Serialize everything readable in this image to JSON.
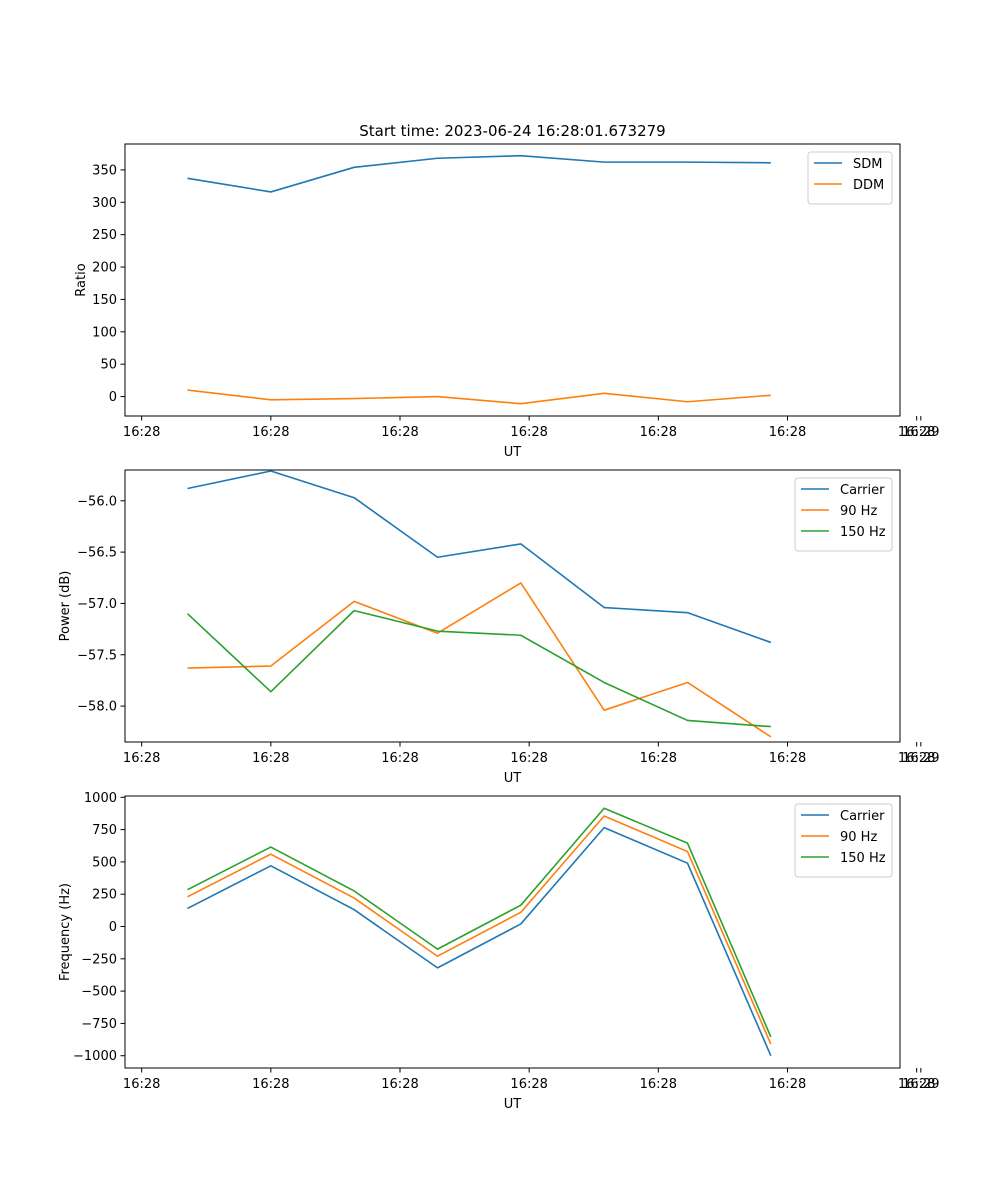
{
  "chart_data": [
    {
      "type": "line",
      "title": "Start time: 2023-06-24 16:28:01.673279",
      "xlabel": "UT",
      "ylabel": "Ratio",
      "x_tick_labels": [
        "16:28",
        "16:28",
        "16:28",
        "16:28",
        "16:28",
        "16:28",
        "16:28"
      ],
      "x_end_tick_label": "16:29",
      "y_ticks": [
        0,
        50,
        100,
        150,
        200,
        250,
        300,
        350
      ],
      "ylim": [
        -30,
        390
      ],
      "legend_position": "top-right",
      "series": [
        {
          "name": "SDM",
          "color": "#1f77b4",
          "values": [
            337,
            316,
            354,
            368,
            372,
            362,
            362,
            361
          ]
        },
        {
          "name": "DDM",
          "color": "#ff7f0e",
          "values": [
            10,
            -5,
            -3,
            0,
            -11,
            5,
            -8,
            2
          ]
        }
      ]
    },
    {
      "type": "line",
      "title": "",
      "xlabel": "UT",
      "ylabel": "Power (dB)",
      "x_tick_labels": [
        "16:28",
        "16:28",
        "16:28",
        "16:28",
        "16:28",
        "16:28",
        "16:28"
      ],
      "x_end_tick_label": "16:29",
      "y_ticks": [
        -58.0,
        -57.5,
        -57.0,
        -56.5,
        -56.0
      ],
      "ylim": [
        -58.35,
        -55.7
      ],
      "legend_position": "top-right",
      "series": [
        {
          "name": "Carrier",
          "color": "#1f77b4",
          "values": [
            -55.88,
            -55.71,
            -55.97,
            -56.55,
            -56.42,
            -57.04,
            -57.09,
            -57.38
          ]
        },
        {
          "name": "90 Hz",
          "color": "#ff7f0e",
          "values": [
            -57.63,
            -57.61,
            -56.98,
            -57.29,
            -56.8,
            -58.04,
            -57.77,
            -58.3
          ]
        },
        {
          "name": "150 Hz",
          "color": "#2ca02c",
          "values": [
            -57.1,
            -57.86,
            -57.07,
            -57.27,
            -57.31,
            -57.77,
            -58.14,
            -58.2
          ]
        }
      ]
    },
    {
      "type": "line",
      "title": "",
      "xlabel": "UT",
      "ylabel": "Frequency (Hz)",
      "x_tick_labels": [
        "16:28",
        "16:28",
        "16:28",
        "16:28",
        "16:28",
        "16:28",
        "16:28"
      ],
      "x_end_tick_label": "16:29",
      "y_ticks": [
        -1000,
        -750,
        -500,
        -250,
        0,
        250,
        500,
        750,
        1000
      ],
      "ylim": [
        -1095,
        1010
      ],
      "legend_position": "top-right",
      "series": [
        {
          "name": "Carrier",
          "color": "#1f77b4",
          "values": [
            140,
            470,
            130,
            -320,
            20,
            765,
            490,
            -1000
          ]
        },
        {
          "name": "90 Hz",
          "color": "#ff7f0e",
          "values": [
            230,
            560,
            220,
            -230,
            110,
            855,
            580,
            -910
          ]
        },
        {
          "name": "150 Hz",
          "color": "#2ca02c",
          "values": [
            285,
            615,
            275,
            -175,
            165,
            915,
            645,
            -855
          ]
        }
      ]
    }
  ]
}
